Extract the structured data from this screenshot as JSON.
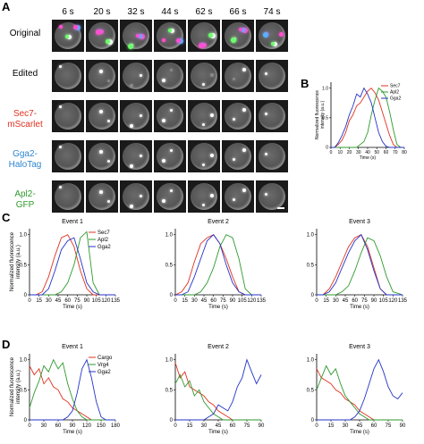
{
  "panels": {
    "A": "A",
    "B": "B",
    "C": "C",
    "D": "D"
  },
  "montage": {
    "times": [
      "6 s",
      "20 s",
      "32 s",
      "44 s",
      "62 s",
      "66 s",
      "74 s"
    ],
    "rows": [
      {
        "label": "Original",
        "color": "#000000"
      },
      {
        "label": "Edited",
        "color": "#000000"
      },
      {
        "label": "Sec7-\nmScarlet",
        "color": "#e0321f"
      },
      {
        "label": "Gga2-\nHaloTag",
        "color": "#2f86d0"
      },
      {
        "label": "Apl2-\nGFP",
        "color": "#2f9a2f"
      }
    ]
  },
  "colors": {
    "red": "#e0321f",
    "green": "#2e9a2e",
    "blue": "#2433c8"
  },
  "chart_data": [
    {
      "id": "B",
      "type": "line",
      "title": "",
      "xlabel": "Time (s)",
      "ylabel": "Normalized fluorescence intensity (a.u.)",
      "xlim": [
        0,
        80
      ],
      "ylim": [
        0,
        1.1
      ],
      "xticks": [
        0,
        10,
        20,
        30,
        40,
        50,
        60,
        70,
        80
      ],
      "yticks": [
        0,
        0.5,
        1.0
      ],
      "yticklabels": [
        "0",
        "0.5",
        "1.0"
      ],
      "legend": [
        "Sec7",
        "Apl2",
        "Gga2"
      ],
      "legend_position": "top-right",
      "series": [
        {
          "name": "Sec7",
          "color": "red",
          "x": [
            0,
            4,
            8,
            12,
            16,
            20,
            24,
            28,
            32,
            36,
            40,
            44,
            48,
            52,
            56,
            60,
            64,
            68,
            72,
            76,
            80
          ],
          "values": [
            0,
            0,
            0.05,
            0.12,
            0.25,
            0.45,
            0.55,
            0.7,
            0.75,
            0.85,
            0.95,
            1.0,
            0.92,
            0.8,
            0.6,
            0.4,
            0.2,
            0.05,
            0,
            0,
            0
          ]
        },
        {
          "name": "Apl2",
          "color": "green",
          "x": [
            0,
            4,
            8,
            12,
            16,
            20,
            24,
            28,
            32,
            36,
            40,
            44,
            48,
            52,
            56,
            60,
            64,
            68,
            72,
            76,
            80
          ],
          "values": [
            0,
            0,
            0,
            0,
            0,
            0,
            0,
            0,
            0.05,
            0.1,
            0.25,
            0.55,
            0.8,
            1.0,
            0.95,
            0.85,
            0.6,
            0.3,
            0.05,
            0,
            0
          ]
        },
        {
          "name": "Gga2",
          "color": "blue",
          "x": [
            0,
            4,
            8,
            12,
            16,
            20,
            24,
            28,
            32,
            36,
            40,
            44,
            48,
            52,
            56,
            60,
            64,
            68,
            72,
            76,
            80
          ],
          "values": [
            0,
            0,
            0.08,
            0.2,
            0.35,
            0.55,
            0.7,
            0.9,
            0.85,
            1.0,
            0.9,
            0.75,
            0.5,
            0.25,
            0.1,
            0.02,
            0,
            0,
            0,
            0,
            0
          ]
        }
      ]
    },
    {
      "id": "C1",
      "type": "line",
      "title": "Event 1",
      "xlabel": "Time (s)",
      "ylabel": "Normalized fluorescence intensity (a.u.)",
      "xlim": [
        0,
        135
      ],
      "ylim": [
        0,
        1.1
      ],
      "xticks": [
        0,
        15,
        30,
        45,
        60,
        75,
        90,
        105,
        120,
        135
      ],
      "yticks": [
        0,
        0.5,
        1.0
      ],
      "yticklabels": [
        "0",
        "0.5",
        "1.0"
      ],
      "legend": [
        "Sec7",
        "Apl2",
        "Gga2"
      ],
      "legend_position": "top-right",
      "series": [
        {
          "name": "Sec7",
          "color": "red",
          "x": [
            0,
            10,
            20,
            30,
            40,
            50,
            60,
            70,
            80,
            90,
            100,
            110,
            120,
            135
          ],
          "values": [
            0,
            0,
            0.05,
            0.3,
            0.65,
            0.95,
            1.0,
            0.8,
            0.4,
            0.1,
            0,
            0,
            0,
            0
          ]
        },
        {
          "name": "Apl2",
          "color": "green",
          "x": [
            0,
            10,
            20,
            30,
            40,
            50,
            60,
            70,
            80,
            90,
            100,
            110,
            120,
            135
          ],
          "values": [
            0,
            0,
            0,
            0,
            0,
            0.05,
            0.2,
            0.5,
            0.95,
            1.05,
            0.2,
            0,
            0,
            0
          ]
        },
        {
          "name": "Gga2",
          "color": "blue",
          "x": [
            0,
            10,
            20,
            30,
            40,
            50,
            60,
            70,
            80,
            90,
            100,
            110,
            120,
            135
          ],
          "values": [
            0,
            0,
            0,
            0.1,
            0.4,
            0.75,
            0.9,
            0.95,
            0.6,
            0.2,
            0.05,
            0,
            0,
            0
          ]
        }
      ]
    },
    {
      "id": "C2",
      "type": "line",
      "title": "Event 2",
      "xlabel": "Time (s)",
      "ylabel": "",
      "xlim": [
        0,
        135
      ],
      "ylim": [
        0,
        1.1
      ],
      "xticks": [
        0,
        15,
        30,
        45,
        60,
        75,
        90,
        105,
        120,
        135
      ],
      "yticks": [
        0,
        0.5,
        1.0
      ],
      "yticklabels": [
        "0",
        "0.5",
        "1.0"
      ],
      "legend": [],
      "legend_position": "",
      "series": [
        {
          "name": "",
          "color": "red",
          "x": [
            0,
            10,
            20,
            30,
            40,
            50,
            60,
            70,
            80,
            90,
            100,
            110,
            120,
            135
          ],
          "values": [
            0,
            0.05,
            0.2,
            0.55,
            0.85,
            0.95,
            1.0,
            0.85,
            0.6,
            0.3,
            0.05,
            0,
            0,
            0
          ]
        },
        {
          "name": "",
          "color": "green",
          "x": [
            0,
            10,
            20,
            30,
            40,
            50,
            60,
            70,
            80,
            90,
            100,
            110,
            120,
            135
          ],
          "values": [
            0,
            0,
            0,
            0,
            0.05,
            0.2,
            0.45,
            0.8,
            1.0,
            0.95,
            0.6,
            0.1,
            0,
            0
          ]
        },
        {
          "name": "",
          "color": "blue",
          "x": [
            0,
            10,
            20,
            30,
            40,
            50,
            60,
            70,
            80,
            90,
            100,
            110,
            120,
            135
          ],
          "values": [
            0,
            0,
            0.05,
            0.3,
            0.6,
            0.9,
            1.0,
            0.85,
            0.5,
            0.2,
            0.05,
            0,
            0,
            0
          ]
        }
      ]
    },
    {
      "id": "C3",
      "type": "line",
      "title": "Event 3",
      "xlabel": "Time (s)",
      "ylabel": "",
      "xlim": [
        0,
        135
      ],
      "ylim": [
        0,
        1.1
      ],
      "xticks": [
        0,
        15,
        30,
        45,
        60,
        75,
        90,
        105,
        120,
        135
      ],
      "yticks": [
        0,
        0.5,
        1.0
      ],
      "yticklabels": [
        "0",
        "0.5",
        "1.0"
      ],
      "legend": [],
      "legend_position": "",
      "series": [
        {
          "name": "",
          "color": "red",
          "x": [
            0,
            10,
            20,
            30,
            40,
            50,
            60,
            70,
            80,
            90,
            100,
            110,
            120,
            135
          ],
          "values": [
            0,
            0,
            0.1,
            0.3,
            0.55,
            0.8,
            0.95,
            1.0,
            0.8,
            0.45,
            0.1,
            0,
            0,
            0
          ]
        },
        {
          "name": "",
          "color": "green",
          "x": [
            0,
            10,
            20,
            30,
            40,
            50,
            60,
            70,
            80,
            90,
            100,
            110,
            120,
            135
          ],
          "values": [
            0,
            0,
            0,
            0,
            0.05,
            0.15,
            0.4,
            0.7,
            0.95,
            0.9,
            0.65,
            0.3,
            0.05,
            0
          ]
        },
        {
          "name": "",
          "color": "blue",
          "x": [
            0,
            10,
            20,
            30,
            40,
            50,
            60,
            70,
            80,
            90,
            100,
            110,
            120,
            135
          ],
          "values": [
            0,
            0,
            0.05,
            0.2,
            0.45,
            0.7,
            0.9,
            1.0,
            0.75,
            0.4,
            0.1,
            0,
            0,
            0
          ]
        }
      ]
    },
    {
      "id": "D1",
      "type": "line",
      "title": "Event 1",
      "xlabel": "Time (s)",
      "ylabel": "Normalized fluorescence intensity (a.u.)",
      "xlim": [
        0,
        180
      ],
      "ylim": [
        0,
        1.1
      ],
      "xticks": [
        0,
        30,
        60,
        90,
        120,
        150,
        180
      ],
      "yticks": [
        0,
        0.5,
        1.0
      ],
      "yticklabels": [
        "0",
        "0.5",
        "1.0"
      ],
      "legend": [
        "Cargo",
        "Vrg4",
        "Gga2"
      ],
      "legend_position": "top-right",
      "series": [
        {
          "name": "Cargo",
          "color": "red",
          "x": [
            0,
            10,
            20,
            30,
            40,
            50,
            60,
            70,
            80,
            90,
            100,
            110,
            120,
            130,
            140,
            150,
            160,
            170,
            180
          ],
          "values": [
            0.9,
            0.75,
            0.85,
            0.6,
            0.7,
            0.55,
            0.5,
            0.35,
            0.3,
            0.2,
            0.15,
            0.1,
            0.05,
            0,
            0,
            0,
            0,
            0,
            0
          ]
        },
        {
          "name": "Vrg4",
          "color": "green",
          "x": [
            0,
            10,
            20,
            30,
            40,
            50,
            60,
            70,
            80,
            90,
            100,
            110,
            120,
            130,
            140,
            150,
            160,
            170,
            180
          ],
          "values": [
            0.2,
            0.45,
            0.65,
            0.9,
            0.8,
            1.0,
            0.85,
            0.95,
            0.6,
            0.35,
            0.15,
            0.05,
            0,
            0,
            0,
            0,
            0,
            0,
            0
          ]
        },
        {
          "name": "Gga2",
          "color": "blue",
          "x": [
            0,
            10,
            20,
            30,
            40,
            50,
            60,
            70,
            80,
            90,
            100,
            110,
            120,
            130,
            140,
            150,
            160,
            170,
            180
          ],
          "values": [
            0,
            0,
            0,
            0,
            0,
            0,
            0,
            0,
            0.05,
            0.15,
            0.45,
            0.85,
            1.0,
            0.7,
            0.3,
            0.05,
            0,
            0,
            0
          ]
        }
      ]
    },
    {
      "id": "D2",
      "type": "line",
      "title": "Event 2",
      "xlabel": "Time (s)",
      "ylabel": "",
      "xlim": [
        0,
        90
      ],
      "ylim": [
        0,
        1.1
      ],
      "xticks": [
        0,
        15,
        30,
        45,
        60,
        75,
        90
      ],
      "yticks": [
        0,
        0.5,
        1.0
      ],
      "yticklabels": [
        "0",
        "0.5",
        "1.0"
      ],
      "legend": [],
      "legend_position": "",
      "series": [
        {
          "name": "",
          "color": "red",
          "x": [
            0,
            5,
            10,
            15,
            20,
            25,
            30,
            35,
            40,
            45,
            50,
            55,
            60,
            65,
            70,
            75,
            80,
            85,
            90
          ],
          "values": [
            0.95,
            0.7,
            0.8,
            0.55,
            0.5,
            0.45,
            0.4,
            0.3,
            0.25,
            0.15,
            0.1,
            0.05,
            0,
            0,
            0,
            0,
            0,
            0,
            0
          ]
        },
        {
          "name": "",
          "color": "green",
          "x": [
            0,
            5,
            10,
            15,
            20,
            25,
            30,
            35,
            40,
            45,
            50,
            55,
            60,
            65,
            70,
            75,
            80,
            85,
            90
          ],
          "values": [
            0.6,
            0.75,
            0.55,
            0.65,
            0.4,
            0.5,
            0.3,
            0.2,
            0.1,
            0.05,
            0,
            0,
            0,
            0,
            0,
            0,
            0,
            0,
            0
          ]
        },
        {
          "name": "",
          "color": "blue",
          "x": [
            0,
            5,
            10,
            15,
            20,
            25,
            30,
            35,
            40,
            45,
            50,
            55,
            60,
            65,
            70,
            75,
            80,
            85,
            90
          ],
          "values": [
            0,
            0,
            0,
            0,
            0,
            0,
            0,
            0.05,
            0.1,
            0.25,
            0.2,
            0.15,
            0.3,
            0.55,
            0.7,
            1.0,
            0.8,
            0.6,
            0.75
          ]
        }
      ]
    },
    {
      "id": "D3",
      "type": "line",
      "title": "Event 3",
      "xlabel": "Time (s)",
      "ylabel": "",
      "xlim": [
        0,
        90
      ],
      "ylim": [
        0,
        1.1
      ],
      "xticks": [
        0,
        15,
        30,
        45,
        60,
        75,
        90
      ],
      "yticks": [
        0,
        0.5,
        1.0
      ],
      "yticklabels": [
        "0",
        "0.5",
        "1.0"
      ],
      "legend": [],
      "legend_position": "",
      "series": [
        {
          "name": "",
          "color": "red",
          "x": [
            0,
            5,
            10,
            15,
            20,
            25,
            30,
            35,
            40,
            45,
            50,
            55,
            60,
            65,
            70,
            75,
            80,
            85,
            90
          ],
          "values": [
            0.85,
            0.7,
            0.65,
            0.6,
            0.5,
            0.45,
            0.35,
            0.3,
            0.25,
            0.15,
            0.1,
            0.05,
            0,
            0,
            0,
            0,
            0,
            0,
            0
          ]
        },
        {
          "name": "",
          "color": "green",
          "x": [
            0,
            5,
            10,
            15,
            20,
            25,
            30,
            35,
            40,
            45,
            50,
            55,
            60,
            65,
            70,
            75,
            80,
            85,
            90
          ],
          "values": [
            0.5,
            0.7,
            0.9,
            0.75,
            0.85,
            0.6,
            0.4,
            0.3,
            0.2,
            0.1,
            0.05,
            0,
            0,
            0,
            0,
            0,
            0,
            0,
            0
          ]
        },
        {
          "name": "",
          "color": "blue",
          "x": [
            0,
            5,
            10,
            15,
            20,
            25,
            30,
            35,
            40,
            45,
            50,
            55,
            60,
            65,
            70,
            75,
            80,
            85,
            90
          ],
          "values": [
            0,
            0,
            0,
            0,
            0,
            0,
            0,
            0,
            0.05,
            0.15,
            0.35,
            0.6,
            0.85,
            1.0,
            0.8,
            0.55,
            0.4,
            0.35,
            0.45
          ]
        }
      ]
    }
  ]
}
